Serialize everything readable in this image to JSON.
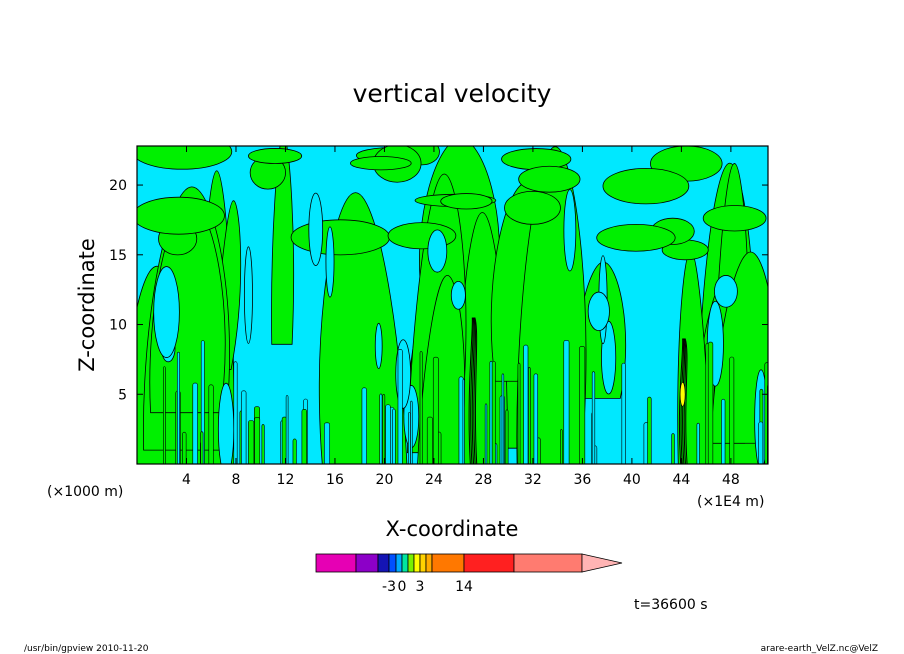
{
  "chart_data": {
    "type": "heatmap",
    "title": "vertical velocity",
    "xlabel": "X-coordinate",
    "ylabel": "Z-coordinate",
    "x_unit_left": "(×1000 m)",
    "x_unit_right": "(×1E4 m)",
    "xlim": [
      0,
      51
    ],
    "ylim": [
      0,
      22.8
    ],
    "x_ticks": [
      4,
      8,
      12,
      16,
      20,
      24,
      28,
      32,
      36,
      40,
      44,
      48
    ],
    "y_ticks": [
      5,
      10,
      15,
      20
    ],
    "colorbar": {
      "colors": [
        "#e600b4",
        "#8c00c8",
        "#1414b4",
        "#0050ff",
        "#00aaff",
        "#00e6a0",
        "#78f000",
        "#ffff00",
        "#ffd200",
        "#ffaa00",
        "#ff7800",
        "#ff2020",
        "#ff7b70",
        "#ffb4b4"
      ],
      "tick_labels": [
        {
          "label": "-3",
          "after_segment": 3
        },
        {
          "label": "0",
          "after_segment": 5
        },
        {
          "label": "3",
          "after_segment": 8
        },
        {
          "label": "14",
          "after_segment": 11
        }
      ]
    },
    "field_colors": {
      "negative": "#00e8ff",
      "positive": "#00f000"
    },
    "time_label": "t=36600 s"
  },
  "footer": {
    "left": "/usr/bin/gpview  2010-11-20",
    "right": "arare-earth_VelZ.nc@VelZ"
  }
}
